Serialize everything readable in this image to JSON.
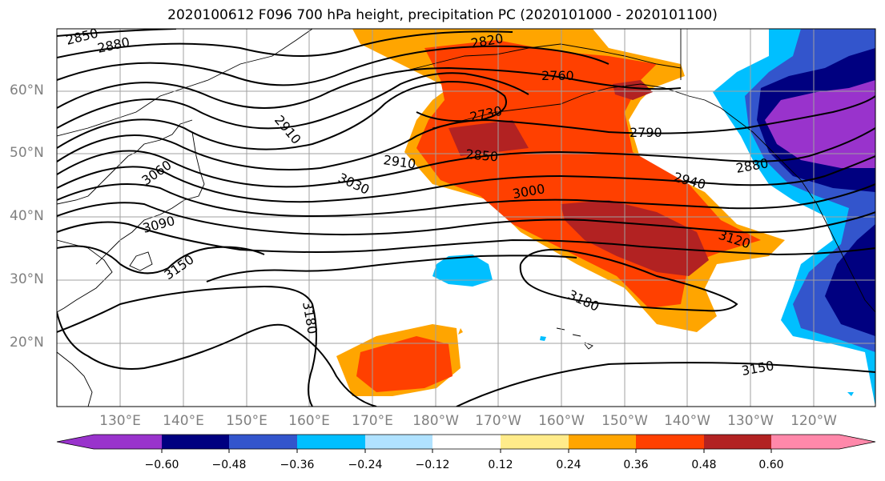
{
  "title": "2020100612 F096 700 hPa height, precipitation PC (2020101000 - 2020101100)",
  "map": {
    "latitude_labels": [
      "60°N",
      "50°N",
      "40°N",
      "30°N",
      "20°N"
    ],
    "longitude_labels": [
      "130°E",
      "140°E",
      "150°E",
      "160°E",
      "170°E",
      "180°W",
      "170°W",
      "160°W",
      "150°W",
      "140°W",
      "130°W",
      "120°W"
    ],
    "height_contour_labels": [
      "2850",
      "2880",
      "2820",
      "2760",
      "2730",
      "2790",
      "2850",
      "2910",
      "2910",
      "3060",
      "3030",
      "3000",
      "2940",
      "2880",
      "3090",
      "3150",
      "3120",
      "3180",
      "3180",
      "3150"
    ],
    "contour_color": "#000000",
    "grid_color": "#a0a0a0"
  },
  "colorbar": {
    "tick_labels": [
      "−0.60",
      "−0.48",
      "−0.36",
      "−0.24",
      "−0.12",
      "0.12",
      "0.24",
      "0.36",
      "0.48",
      "0.60"
    ],
    "colors": [
      "#9933cc",
      "#000080",
      "#3355cc",
      "#00bfff",
      "#b0e2ff",
      "#ffffff",
      "#ffeb8a",
      "#ffa500",
      "#ff4000",
      "#b22222",
      "#ff88aa"
    ]
  }
}
